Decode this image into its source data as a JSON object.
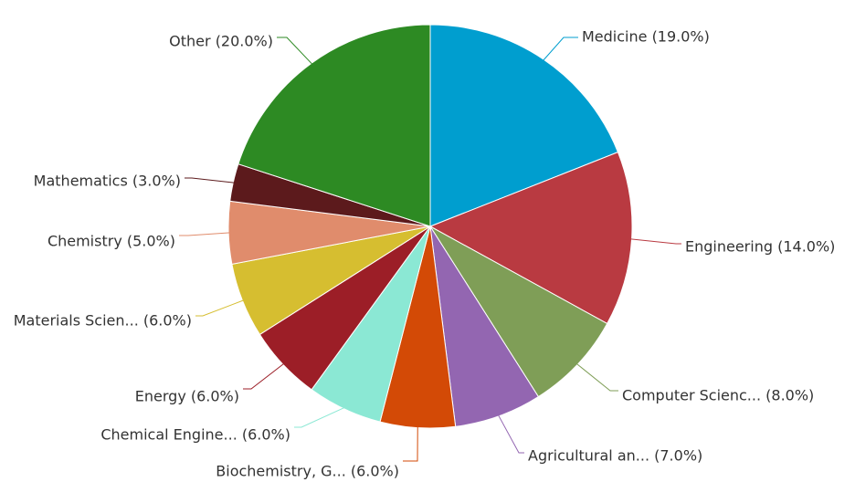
{
  "chart_data": {
    "type": "pie",
    "title": "",
    "slices": [
      {
        "label": "Medicine (19.0%)",
        "value": 19.0,
        "color": "#009ecf"
      },
      {
        "label": "Engineering (14.0%)",
        "value": 14.0,
        "color": "#b93a41"
      },
      {
        "label": "Computer Scienc... (8.0%)",
        "value": 8.0,
        "color": "#7f9e57"
      },
      {
        "label": "Agricultural an... (7.0%)",
        "value": 7.0,
        "color": "#9366b1"
      },
      {
        "label": "Biochemistry, G... (6.0%)",
        "value": 6.0,
        "color": "#d34a06"
      },
      {
        "label": "Chemical Engine... (6.0%)",
        "value": 6.0,
        "color": "#8be8d4"
      },
      {
        "label": "Energy (6.0%)",
        "value": 6.0,
        "color": "#9c1e27"
      },
      {
        "label": "Materials Scien... (6.0%)",
        "value": 6.0,
        "color": "#d6be30"
      },
      {
        "label": "Chemistry (5.0%)",
        "value": 5.0,
        "color": "#e08c6c"
      },
      {
        "label": "Mathematics (3.0%)",
        "value": 3.0,
        "color": "#5c1a1c"
      },
      {
        "label": "Other (20.0%)",
        "value": 20.0,
        "color": "#2d8a23"
      }
    ]
  }
}
